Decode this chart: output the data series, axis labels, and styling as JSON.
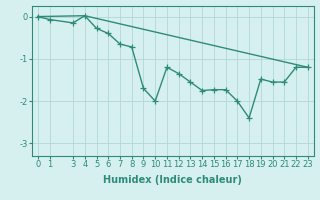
{
  "line1_x": [
    0,
    1,
    3,
    4,
    5,
    6,
    7,
    8,
    9,
    10,
    11,
    12,
    13,
    14,
    15,
    16,
    17,
    18,
    19,
    20,
    21,
    22,
    23
  ],
  "line1_y": [
    0.0,
    -0.07,
    -0.15,
    0.02,
    -0.28,
    -0.4,
    -0.65,
    -0.72,
    -1.7,
    -2.0,
    -1.2,
    -1.35,
    -1.55,
    -1.75,
    -1.73,
    -1.73,
    -2.0,
    -2.4,
    -1.48,
    -1.55,
    -1.55,
    -1.2,
    -1.2
  ],
  "line2_x": [
    0,
    4,
    23
  ],
  "line2_y": [
    0.0,
    0.02,
    -1.2
  ],
  "color": "#2e8b7a",
  "background_color": "#d6f0ef",
  "grid_color": "#b0d8d6",
  "xlabel": "Humidex (Indice chaleur)",
  "xlim": [
    -0.5,
    23.5
  ],
  "ylim": [
    -3.3,
    0.25
  ],
  "yticks": [
    0,
    -1,
    -2,
    -3
  ],
  "xticks": [
    0,
    1,
    3,
    4,
    5,
    6,
    7,
    8,
    9,
    10,
    11,
    12,
    13,
    14,
    15,
    16,
    17,
    18,
    19,
    20,
    21,
    22,
    23
  ],
  "marker": "+",
  "markersize": 4,
  "linewidth": 1.0,
  "xlabel_fontsize": 7,
  "tick_fontsize": 6
}
